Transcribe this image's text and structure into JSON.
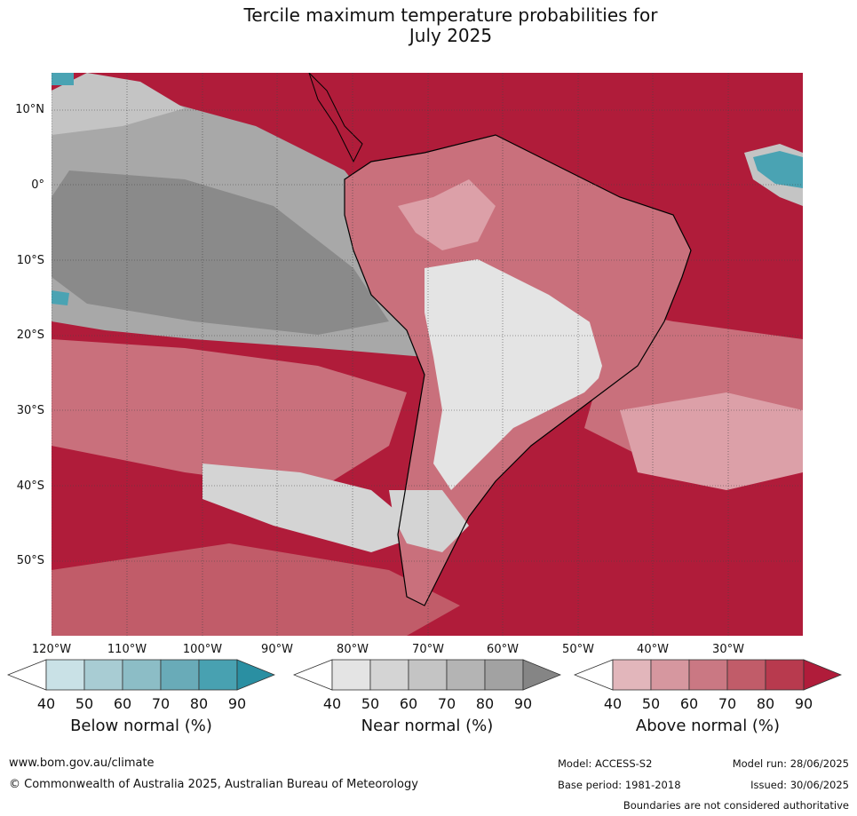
{
  "title_line1": "Tercile maximum temperature probabilities for",
  "title_line2": "July 2025",
  "lat_labels": [
    "10°N",
    "0°",
    "10°S",
    "20°S",
    "30°S",
    "40°S",
    "50°S"
  ],
  "lon_labels": [
    "120°W",
    "110°W",
    "100°W",
    "90°W",
    "80°W",
    "70°W",
    "60°W",
    "50°W",
    "40°W",
    "30°W"
  ],
  "colorbars": [
    {
      "title": "Below normal (%)",
      "ticks": [
        "40",
        "50",
        "60",
        "70",
        "80",
        "90"
      ],
      "colors": [
        "#ffffff",
        "#c9e1e6",
        "#a8ccd3",
        "#8cbdc6",
        "#69abb8",
        "#48a1b1",
        "#2a8fa2"
      ]
    },
    {
      "title": "Near normal (%)",
      "ticks": [
        "40",
        "50",
        "60",
        "70",
        "80",
        "90"
      ],
      "colors": [
        "#ffffff",
        "#e4e4e4",
        "#d4d4d4",
        "#c4c4c4",
        "#b4b4b4",
        "#a2a2a2",
        "#858585"
      ]
    },
    {
      "title": "Above normal (%)",
      "ticks": [
        "40",
        "50",
        "60",
        "70",
        "80",
        "90"
      ],
      "colors": [
        "#ffffff",
        "#e2b6bb",
        "#d6979f",
        "#ca7883",
        "#c15c69",
        "#b83a4e",
        "#b01c3a"
      ]
    }
  ],
  "footer": {
    "website": "www.bom.gov.au/climate",
    "copyright": "© Commonwealth of Australia 2025, Australian Bureau of Meteorology",
    "model": "Model: ACCESS-S2",
    "model_run": "Model run: 28/06/2025",
    "base_period": "Base period: 1981-2018",
    "issued": "Issued: 30/06/2025",
    "disclaimer": "Boundaries are not considered authoritative"
  },
  "map_colors": {
    "ocean_above": "#b01c3a",
    "above_mid": "#c9707c",
    "above_light": "#dca0a8",
    "near_light": "#e4e4e4",
    "near_mid": "#c4c4c4",
    "near_dark": "#8a8a8a",
    "below": "#4aa3b3"
  }
}
